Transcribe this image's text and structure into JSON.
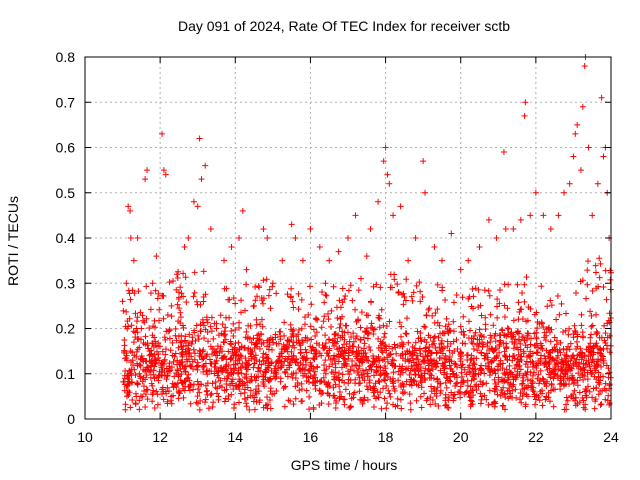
{
  "chart_data": {
    "type": "scatter",
    "title": "Day 091 of 2024, Rate Of TEC Index for receiver sctb",
    "xlabel": "GPS time / hours",
    "ylabel": "ROTI / TECUs",
    "xlim": [
      10,
      24
    ],
    "ylim": [
      0,
      0.8
    ],
    "xticks": [
      10,
      12,
      14,
      16,
      18,
      20,
      22,
      24
    ],
    "yticks": [
      0,
      0.1,
      0.2,
      0.3,
      0.4,
      0.5,
      0.6,
      0.7,
      0.8
    ],
    "xtick_labels": [
      "10",
      "12",
      "14",
      "16",
      "18",
      "20",
      "22",
      "24"
    ],
    "ytick_labels": [
      "0",
      "0.1",
      "0.2",
      "0.3",
      "0.4",
      "0.5",
      "0.6",
      "0.7",
      "0.8"
    ],
    "grid": true,
    "marker": "+",
    "marker_color": "#ff0000",
    "x_range_of_data": [
      11.0,
      24.0
    ],
    "series": [
      {
        "name": "ROTI",
        "points": [
          [
            11.0,
            0.26
          ],
          [
            11.05,
            0.15
          ],
          [
            11.1,
            0.3
          ],
          [
            11.15,
            0.47
          ],
          [
            11.2,
            0.46
          ],
          [
            11.22,
            0.4
          ],
          [
            11.3,
            0.35
          ],
          [
            11.4,
            0.4
          ],
          [
            11.5,
            0.2
          ],
          [
            11.6,
            0.53
          ],
          [
            11.65,
            0.55
          ],
          [
            11.8,
            0.3
          ],
          [
            11.9,
            0.36
          ],
          [
            12.05,
            0.63
          ],
          [
            12.1,
            0.55
          ],
          [
            12.15,
            0.54
          ],
          [
            12.3,
            0.25
          ],
          [
            12.5,
            0.28
          ],
          [
            12.65,
            0.38
          ],
          [
            12.75,
            0.4
          ],
          [
            12.9,
            0.48
          ],
          [
            13.0,
            0.47
          ],
          [
            13.05,
            0.62
          ],
          [
            13.1,
            0.53
          ],
          [
            13.2,
            0.56
          ],
          [
            13.35,
            0.42
          ],
          [
            13.5,
            0.2
          ],
          [
            13.7,
            0.35
          ],
          [
            13.9,
            0.38
          ],
          [
            14.1,
            0.4
          ],
          [
            14.2,
            0.46
          ],
          [
            14.3,
            0.33
          ],
          [
            14.5,
            0.25
          ],
          [
            14.75,
            0.42
          ],
          [
            14.85,
            0.4
          ],
          [
            15.0,
            0.3
          ],
          [
            15.25,
            0.35
          ],
          [
            15.5,
            0.43
          ],
          [
            15.6,
            0.4
          ],
          [
            15.8,
            0.35
          ],
          [
            16.0,
            0.42
          ],
          [
            16.25,
            0.38
          ],
          [
            16.4,
            0.3
          ],
          [
            16.5,
            0.35
          ],
          [
            16.75,
            0.37
          ],
          [
            17.0,
            0.4
          ],
          [
            17.2,
            0.45
          ],
          [
            17.5,
            0.36
          ],
          [
            17.6,
            0.42
          ],
          [
            17.8,
            0.48
          ],
          [
            17.95,
            0.57
          ],
          [
            18.0,
            0.6
          ],
          [
            18.05,
            0.54
          ],
          [
            18.1,
            0.52
          ],
          [
            18.2,
            0.45
          ],
          [
            18.4,
            0.47
          ],
          [
            18.6,
            0.35
          ],
          [
            18.8,
            0.4
          ],
          [
            19.0,
            0.57
          ],
          [
            19.05,
            0.5
          ],
          [
            19.3,
            0.38
          ],
          [
            19.5,
            0.35
          ],
          [
            19.75,
            0.41
          ],
          [
            20.0,
            0.33
          ],
          [
            20.2,
            0.35
          ],
          [
            20.5,
            0.38
          ],
          [
            20.75,
            0.44
          ],
          [
            20.95,
            0.4
          ],
          [
            21.15,
            0.59
          ],
          [
            21.2,
            0.42
          ],
          [
            21.4,
            0.42
          ],
          [
            21.6,
            0.44
          ],
          [
            21.7,
            0.67
          ],
          [
            21.72,
            0.7
          ],
          [
            21.85,
            0.45
          ],
          [
            22.0,
            0.5
          ],
          [
            22.2,
            0.45
          ],
          [
            22.4,
            0.42
          ],
          [
            22.6,
            0.45
          ],
          [
            22.75,
            0.5
          ],
          [
            22.9,
            0.52
          ],
          [
            23.0,
            0.58
          ],
          [
            23.05,
            0.63
          ],
          [
            23.1,
            0.65
          ],
          [
            23.2,
            0.55
          ],
          [
            23.25,
            0.69
          ],
          [
            23.3,
            0.78
          ],
          [
            23.32,
            0.8
          ],
          [
            23.4,
            0.6
          ],
          [
            23.5,
            0.45
          ],
          [
            23.65,
            0.52
          ],
          [
            23.75,
            0.71
          ],
          [
            23.8,
            0.58
          ],
          [
            23.85,
            0.6
          ],
          [
            23.9,
            0.5
          ],
          [
            23.95,
            0.4
          ]
        ],
        "dense_band": {
          "description": "continuous dense cloud of points between 11 and 24 hours",
          "y_floor": 0.02,
          "y_typical": 0.12,
          "y_upper_envelope": [
            [
              11.0,
              0.28
            ],
            [
              11.5,
              0.3
            ],
            [
              12.0,
              0.28
            ],
            [
              12.5,
              0.33
            ],
            [
              13.0,
              0.34
            ],
            [
              13.5,
              0.3
            ],
            [
              14.0,
              0.3
            ],
            [
              14.5,
              0.3
            ],
            [
              15.0,
              0.32
            ],
            [
              15.5,
              0.3
            ],
            [
              16.0,
              0.31
            ],
            [
              16.5,
              0.3
            ],
            [
              17.0,
              0.31
            ],
            [
              17.5,
              0.32
            ],
            [
              18.0,
              0.33
            ],
            [
              18.5,
              0.32
            ],
            [
              19.0,
              0.3
            ],
            [
              19.5,
              0.3
            ],
            [
              20.0,
              0.27
            ],
            [
              20.5,
              0.3
            ],
            [
              21.0,
              0.3
            ],
            [
              21.5,
              0.3
            ],
            [
              22.0,
              0.33
            ],
            [
              22.5,
              0.3
            ],
            [
              23.0,
              0.34
            ],
            [
              23.5,
              0.36
            ],
            [
              24.0,
              0.35
            ]
          ]
        }
      }
    ]
  }
}
